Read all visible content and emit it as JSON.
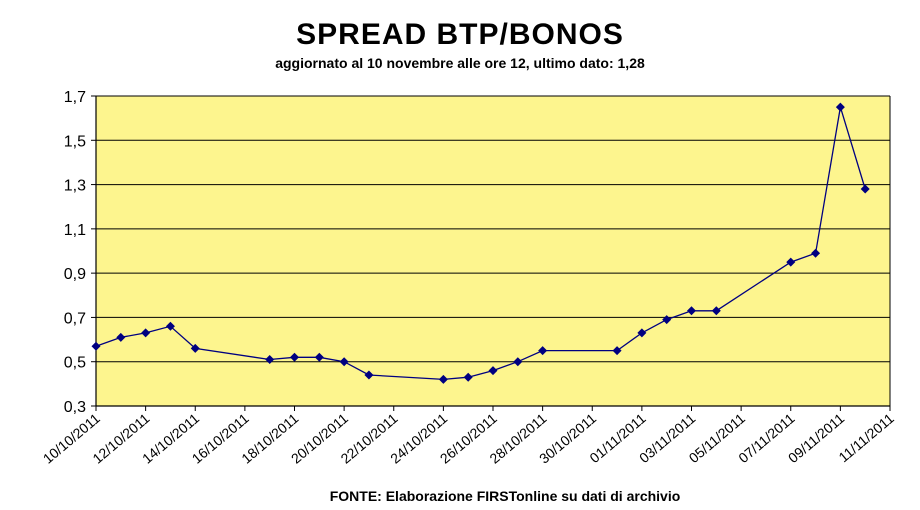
{
  "chart_data": {
    "type": "line",
    "title": "SPREAD BTP/BONOS",
    "subtitle": "aggiornato al 10 novembre alle ore 12, ultimo dato: 1,28",
    "source": "FONTE: Elaborazione FIRSTonline su dati di archivio",
    "xlabel": "",
    "ylabel": "",
    "x_range": [
      "10/10/2011",
      "11/11/2011"
    ],
    "ylim": [
      0.3,
      1.7
    ],
    "y_ticks": [
      "0,3",
      "0,5",
      "0,7",
      "0,9",
      "1,1",
      "1,3",
      "1,5",
      "1,7"
    ],
    "x_ticks": [
      "10/10/2011",
      "12/10/2011",
      "14/10/2011",
      "16/10/2011",
      "18/10/2011",
      "20/10/2011",
      "22/10/2011",
      "24/10/2011",
      "26/10/2011",
      "28/10/2011",
      "30/10/2011",
      "01/11/2011",
      "03/11/2011",
      "05/11/2011",
      "07/11/2011",
      "09/11/2011",
      "11/11/2011"
    ],
    "grid": "horizontal",
    "plot_background": "#fdf58e",
    "line_color": "#000080",
    "series": [
      {
        "points": [
          {
            "x": "10/10/2011",
            "y": 0.57
          },
          {
            "x": "11/10/2011",
            "y": 0.61
          },
          {
            "x": "12/10/2011",
            "y": 0.63
          },
          {
            "x": "13/10/2011",
            "y": 0.66
          },
          {
            "x": "14/10/2011",
            "y": 0.56
          },
          {
            "x": "17/10/2011",
            "y": 0.51
          },
          {
            "x": "18/10/2011",
            "y": 0.52
          },
          {
            "x": "19/10/2011",
            "y": 0.52
          },
          {
            "x": "20/10/2011",
            "y": 0.5
          },
          {
            "x": "21/10/2011",
            "y": 0.44
          },
          {
            "x": "24/10/2011",
            "y": 0.42
          },
          {
            "x": "25/10/2011",
            "y": 0.43
          },
          {
            "x": "26/10/2011",
            "y": 0.46
          },
          {
            "x": "27/10/2011",
            "y": 0.5
          },
          {
            "x": "28/10/2011",
            "y": 0.55
          },
          {
            "x": "31/10/2011",
            "y": 0.55
          },
          {
            "x": "01/11/2011",
            "y": 0.63
          },
          {
            "x": "02/11/2011",
            "y": 0.69
          },
          {
            "x": "03/11/2011",
            "y": 0.73
          },
          {
            "x": "04/11/2011",
            "y": 0.73
          },
          {
            "x": "07/11/2011",
            "y": 0.95
          },
          {
            "x": "08/11/2011",
            "y": 0.99
          },
          {
            "x": "09/11/2011",
            "y": 1.65
          },
          {
            "x": "10/11/2011",
            "y": 1.28
          }
        ]
      }
    ]
  }
}
